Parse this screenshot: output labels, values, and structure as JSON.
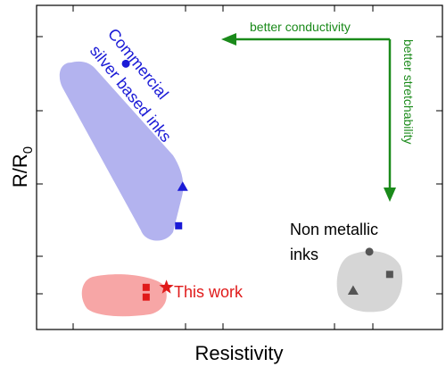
{
  "chart_data": {
    "type": "scatter",
    "xlabel": "Resistivity",
    "ylabel_main": "R/R",
    "ylabel_sub": "0",
    "grid": false,
    "legend": "none",
    "groups": [
      {
        "label_lines": [
          "Commercial",
          "silver based inks"
        ],
        "color": "#1a1ad6",
        "fill": "#b3b3ef",
        "points": [
          {
            "shape": "circle",
            "x": 0.22,
            "y": 0.82
          },
          {
            "shape": "triangle",
            "x": 0.36,
            "y": 0.44
          },
          {
            "shape": "square",
            "x": 0.35,
            "y": 0.32
          }
        ]
      },
      {
        "label_lines": [
          "This work"
        ],
        "color": "#e01a1a",
        "fill": "#f7a6a6",
        "points": [
          {
            "shape": "square",
            "x": 0.27,
            "y": 0.13
          },
          {
            "shape": "square",
            "x": 0.27,
            "y": 0.1
          },
          {
            "shape": "star",
            "x": 0.32,
            "y": 0.13
          }
        ]
      },
      {
        "label_lines": [
          "Non metallic",
          "inks"
        ],
        "color": "#555555",
        "fill": "#d6d6d6",
        "points": [
          {
            "shape": "circle",
            "x": 0.82,
            "y": 0.24
          },
          {
            "shape": "square",
            "x": 0.87,
            "y": 0.17
          },
          {
            "shape": "triangle",
            "x": 0.78,
            "y": 0.12
          }
        ]
      }
    ],
    "arrows": {
      "color": "#1a8a1a",
      "horizontal_label": "better conductivity",
      "vertical_label": "better stretchability"
    }
  }
}
